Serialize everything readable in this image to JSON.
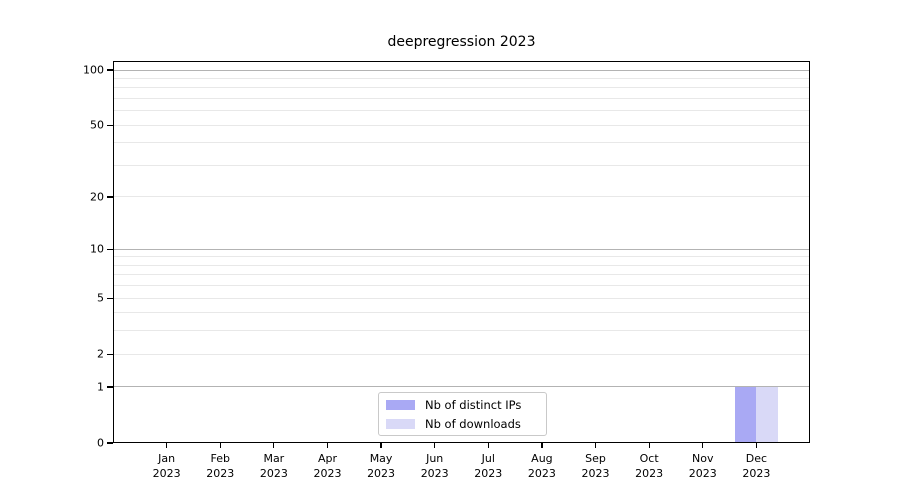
{
  "chart_data": {
    "type": "bar",
    "title": "deepregression 2023",
    "categories": [
      [
        "Jan",
        "2023"
      ],
      [
        "Feb",
        "2023"
      ],
      [
        "Mar",
        "2023"
      ],
      [
        "Apr",
        "2023"
      ],
      [
        "May",
        "2023"
      ],
      [
        "Jun",
        "2023"
      ],
      [
        "Jul",
        "2023"
      ],
      [
        "Aug",
        "2023"
      ],
      [
        "Sep",
        "2023"
      ],
      [
        "Oct",
        "2023"
      ],
      [
        "Nov",
        "2023"
      ],
      [
        "Dec",
        "2023"
      ]
    ],
    "series": [
      {
        "name": "Nb of distinct IPs",
        "color": "#a9a9f4",
        "values": [
          0,
          0,
          0,
          0,
          0,
          0,
          0,
          0,
          0,
          0,
          0,
          1
        ]
      },
      {
        "name": "Nb of downloads",
        "color": "#d9d9f7",
        "values": [
          0,
          0,
          0,
          0,
          0,
          0,
          0,
          0,
          0,
          0,
          0,
          1
        ]
      }
    ],
    "y_axis": {
      "scale": "log1p",
      "ylim": [
        0,
        112
      ],
      "major_ticks": [
        0,
        1,
        2,
        5,
        10,
        20,
        50,
        100
      ],
      "major_gridlines": [
        1,
        10,
        100
      ],
      "minor_gridlines": [
        2,
        3,
        4,
        5,
        6,
        7,
        8,
        9,
        20,
        30,
        40,
        50,
        60,
        70,
        80,
        90
      ]
    },
    "grid": "horizontal-only",
    "legend": {
      "position": "bottom-center"
    },
    "colors": {
      "spine": "#000000",
      "major_grid": "#b3b3b3",
      "minor_grid": "#e8e8e8",
      "text": "#000000",
      "legend_border": "#c9c9c9"
    }
  }
}
